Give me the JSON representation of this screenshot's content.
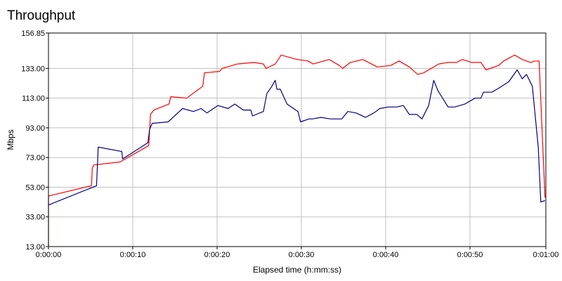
{
  "chart_data": {
    "type": "line",
    "title": "Throughput",
    "xlabel": "Elapsed time (h:mm:ss)",
    "ylabel": "Mbps",
    "xlim": [
      0,
      59
    ],
    "ylim": [
      13,
      156.85
    ],
    "x_ticks": [
      {
        "value": 0,
        "label": "0:00:00"
      },
      {
        "value": 10,
        "label": "0:00:10"
      },
      {
        "value": 20,
        "label": "0:00:20"
      },
      {
        "value": 30,
        "label": "0:00:30"
      },
      {
        "value": 40,
        "label": "0:00:40"
      },
      {
        "value": 50,
        "label": "0:00:50"
      },
      {
        "value": 59,
        "label": "0:01:00"
      }
    ],
    "y_ticks": [
      {
        "value": 13,
        "label": "13.00"
      },
      {
        "value": 33,
        "label": "33.00"
      },
      {
        "value": 53,
        "label": "53.00"
      },
      {
        "value": 73,
        "label": "73.00"
      },
      {
        "value": 93,
        "label": "93.00"
      },
      {
        "value": 113,
        "label": "113.00"
      },
      {
        "value": 133,
        "label": "133.00"
      },
      {
        "value": 156.85,
        "label": "156.85"
      }
    ],
    "grid": true,
    "legend": "none",
    "series": [
      {
        "color": "#ff0000",
        "points": [
          [
            0,
            13
          ],
          [
            0,
            47
          ],
          [
            5.1,
            54
          ],
          [
            5.2,
            66
          ],
          [
            5.4,
            68
          ],
          [
            8.5,
            70
          ],
          [
            11.9,
            81
          ],
          [
            12.1,
            102
          ],
          [
            12.5,
            105
          ],
          [
            14.3,
            109
          ],
          [
            14.5,
            114
          ],
          [
            16.4,
            113
          ],
          [
            18.3,
            121
          ],
          [
            18.5,
            130
          ],
          [
            20.3,
            131
          ],
          [
            20.6,
            133
          ],
          [
            22.4,
            136
          ],
          [
            24.4,
            137
          ],
          [
            25.5,
            136
          ],
          [
            25.8,
            133
          ],
          [
            26.9,
            136
          ],
          [
            27.6,
            142
          ],
          [
            29.5,
            139
          ],
          [
            30.8,
            138
          ],
          [
            31.4,
            136
          ],
          [
            33.3,
            139
          ],
          [
            34.5,
            135
          ],
          [
            34.9,
            133
          ],
          [
            35.8,
            137
          ],
          [
            37.3,
            139
          ],
          [
            39,
            134
          ],
          [
            40.6,
            135
          ],
          [
            41.6,
            138
          ],
          [
            42.8,
            134
          ],
          [
            43.8,
            129
          ],
          [
            44.5,
            130
          ],
          [
            46.3,
            136
          ],
          [
            47.4,
            137
          ],
          [
            48.4,
            137
          ],
          [
            49.1,
            139
          ],
          [
            50.2,
            137
          ],
          [
            51.3,
            137
          ],
          [
            51.9,
            132
          ],
          [
            53.4,
            135
          ],
          [
            54,
            138
          ],
          [
            55.3,
            142
          ],
          [
            56.2,
            139
          ],
          [
            57.2,
            137
          ],
          [
            57.7,
            138
          ],
          [
            58.2,
            138
          ],
          [
            58.9,
            46
          ]
        ]
      },
      {
        "color": "#00007f",
        "points": [
          [
            0,
            41
          ],
          [
            5.7,
            54
          ],
          [
            5.9,
            80
          ],
          [
            8.7,
            77
          ],
          [
            8.8,
            72
          ],
          [
            11.8,
            83
          ],
          [
            12,
            92
          ],
          [
            12.3,
            96
          ],
          [
            14.2,
            97
          ],
          [
            15.9,
            106
          ],
          [
            17.2,
            104
          ],
          [
            18.1,
            106
          ],
          [
            18.8,
            103
          ],
          [
            20.1,
            108
          ],
          [
            21.3,
            106
          ],
          [
            22.1,
            109
          ],
          [
            23.1,
            105
          ],
          [
            24,
            105
          ],
          [
            24.2,
            101
          ],
          [
            25.5,
            104
          ],
          [
            25.9,
            116
          ],
          [
            26.5,
            121
          ],
          [
            26.9,
            125
          ],
          [
            27.1,
            119
          ],
          [
            27.5,
            119
          ],
          [
            28.3,
            109
          ],
          [
            29.6,
            104
          ],
          [
            29.9,
            97
          ],
          [
            30.9,
            99
          ],
          [
            31.3,
            99
          ],
          [
            32.3,
            100
          ],
          [
            33.5,
            99
          ],
          [
            34.8,
            99
          ],
          [
            35.5,
            104
          ],
          [
            36.5,
            103
          ],
          [
            37.6,
            100
          ],
          [
            38.6,
            103
          ],
          [
            39.3,
            106
          ],
          [
            40.3,
            107
          ],
          [
            41.3,
            107
          ],
          [
            42.1,
            108
          ],
          [
            42.8,
            102
          ],
          [
            43.7,
            102
          ],
          [
            44.3,
            99
          ],
          [
            45.1,
            108
          ],
          [
            45.7,
            125
          ],
          [
            46.2,
            118
          ],
          [
            47.4,
            107
          ],
          [
            48.2,
            107
          ],
          [
            49.4,
            109
          ],
          [
            50.6,
            113
          ],
          [
            51.3,
            113
          ],
          [
            51.6,
            117
          ],
          [
            52.6,
            117
          ],
          [
            53.5,
            120
          ],
          [
            54.6,
            124
          ],
          [
            55.6,
            132
          ],
          [
            56.2,
            126
          ],
          [
            56.7,
            129
          ],
          [
            57.4,
            121
          ],
          [
            58.1,
            80
          ],
          [
            58.4,
            43
          ],
          [
            58.9,
            44
          ]
        ]
      }
    ]
  }
}
